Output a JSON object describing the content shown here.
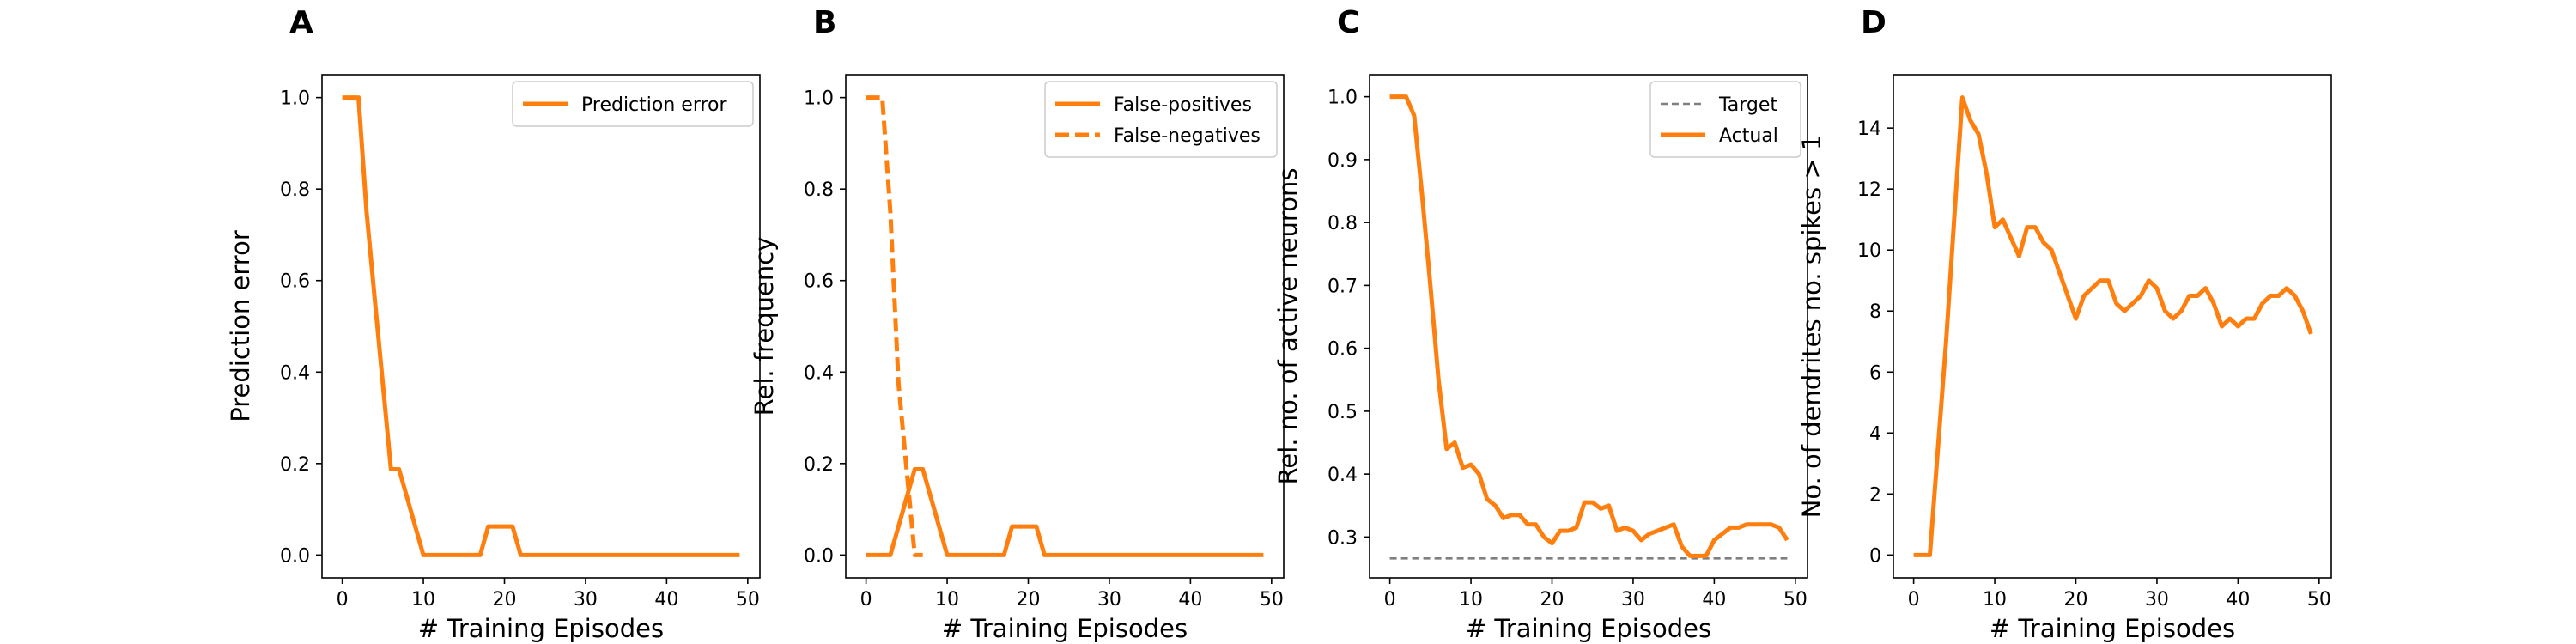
{
  "chart_data": [
    {
      "type": "line",
      "panel": "A",
      "xlabel": "# Training Episodes",
      "ylabel": "Prediction error",
      "xlim": [
        -2.5,
        51.5
      ],
      "ylim": [
        -0.05,
        1.05
      ],
      "xticks": [
        0,
        10,
        20,
        30,
        40,
        50
      ],
      "yticks": [
        0.0,
        0.2,
        0.4,
        0.6,
        0.8,
        1.0
      ],
      "ytick_decimals": 1,
      "legend": "top-right",
      "grid": false,
      "series": [
        {
          "name": "Prediction error",
          "style": "solid",
          "color": "#ff7f0e",
          "x": [
            0,
            1,
            2,
            3,
            4,
            5,
            6,
            7,
            8,
            9,
            10,
            11,
            12,
            13,
            14,
            15,
            16,
            17,
            18,
            19,
            20,
            21,
            22,
            23,
            24,
            25,
            26,
            27,
            28,
            29,
            30,
            31,
            32,
            33,
            34,
            35,
            36,
            37,
            38,
            39,
            40,
            41,
            42,
            43,
            44,
            45,
            46,
            47,
            48,
            49
          ],
          "y": [
            1.0,
            1.0,
            1.0,
            0.75,
            0.56,
            0.375,
            0.1875,
            0.1875,
            0.125,
            0.0625,
            0,
            0,
            0,
            0,
            0,
            0,
            0,
            0,
            0.0625,
            0.0625,
            0.0625,
            0.0625,
            0,
            0,
            0,
            0,
            0,
            0,
            0,
            0,
            0,
            0,
            0,
            0,
            0,
            0,
            0,
            0,
            0,
            0,
            0,
            0,
            0,
            0,
            0,
            0,
            0,
            0,
            0,
            0
          ]
        }
      ]
    },
    {
      "type": "line",
      "panel": "B",
      "xlabel": "# Training Episodes",
      "ylabel": "Rel. frequency",
      "xlim": [
        -2.5,
        51.5
      ],
      "ylim": [
        -0.05,
        1.05
      ],
      "xticks": [
        0,
        10,
        20,
        30,
        40,
        50
      ],
      "yticks": [
        0.0,
        0.2,
        0.4,
        0.6,
        0.8,
        1.0
      ],
      "ytick_decimals": 1,
      "legend": "top-right",
      "grid": false,
      "series": [
        {
          "name": "False-positives",
          "style": "solid",
          "color": "#ff7f0e",
          "x": [
            0,
            1,
            2,
            3,
            4,
            5,
            6,
            7,
            8,
            9,
            10,
            11,
            12,
            13,
            14,
            15,
            16,
            17,
            18,
            19,
            20,
            21,
            22,
            23,
            24,
            25,
            26,
            27,
            28,
            29,
            30,
            31,
            32,
            33,
            34,
            35,
            36,
            37,
            38,
            39,
            40,
            41,
            42,
            43,
            44,
            45,
            46,
            47,
            48,
            49
          ],
          "y": [
            0,
            0,
            0,
            0,
            0.0625,
            0.125,
            0.1875,
            0.1875,
            0.125,
            0.0625,
            0,
            0,
            0,
            0,
            0,
            0,
            0,
            0,
            0.0625,
            0.0625,
            0.0625,
            0.0625,
            0,
            0,
            0,
            0,
            0,
            0,
            0,
            0,
            0,
            0,
            0,
            0,
            0,
            0,
            0,
            0,
            0,
            0,
            0,
            0,
            0,
            0,
            0,
            0,
            0,
            0,
            0,
            0
          ]
        },
        {
          "name": "False-negatives",
          "style": "dashed",
          "color": "#ff7f0e",
          "x": [
            0,
            1,
            2,
            3,
            4,
            5,
            6,
            7
          ],
          "y": [
            1.0,
            1.0,
            1.0,
            0.75,
            0.375,
            0.1875,
            0,
            0
          ]
        }
      ]
    },
    {
      "type": "line",
      "panel": "C",
      "xlabel": "# Training Episodes",
      "ylabel": "Rel. no. of active neurons",
      "xlim": [
        -2.5,
        51.5
      ],
      "ylim": [
        0.235,
        1.035
      ],
      "xticks": [
        0,
        10,
        20,
        30,
        40,
        50
      ],
      "yticks": [
        0.3,
        0.4,
        0.5,
        0.6,
        0.7,
        0.8,
        0.9,
        1.0
      ],
      "ytick_decimals": 1,
      "legend": "top-right",
      "grid": false,
      "series": [
        {
          "name": "Target",
          "style": "dashed-thin",
          "color": "#7f7f7f",
          "x": [
            0,
            49
          ],
          "y": [
            0.266,
            0.266
          ]
        },
        {
          "name": "Actual",
          "style": "solid",
          "color": "#ff7f0e",
          "x": [
            0,
            1,
            2,
            3,
            4,
            5,
            6,
            7,
            8,
            9,
            10,
            11,
            12,
            13,
            14,
            15,
            16,
            17,
            18,
            19,
            20,
            21,
            22,
            23,
            24,
            25,
            26,
            27,
            28,
            29,
            30,
            31,
            32,
            33,
            34,
            35,
            36,
            37,
            38,
            39,
            40,
            41,
            42,
            43,
            44,
            45,
            46,
            47,
            48,
            49
          ],
          "y": [
            1.0,
            1.0,
            1.0,
            0.97,
            0.84,
            0.7,
            0.55,
            0.44,
            0.45,
            0.41,
            0.415,
            0.4,
            0.36,
            0.35,
            0.33,
            0.335,
            0.335,
            0.32,
            0.32,
            0.3,
            0.29,
            0.31,
            0.31,
            0.315,
            0.355,
            0.355,
            0.345,
            0.35,
            0.31,
            0.315,
            0.31,
            0.295,
            0.305,
            0.31,
            0.315,
            0.32,
            0.285,
            0.27,
            0.27,
            0.27,
            0.295,
            0.305,
            0.315,
            0.315,
            0.32,
            0.32,
            0.32,
            0.32,
            0.315,
            0.295
          ]
        }
      ]
    },
    {
      "type": "line",
      "panel": "D",
      "xlabel": "# Training Episodes",
      "ylabel": "No. of dendrites no. spikes > 1",
      "xlim": [
        -2.5,
        51.5
      ],
      "ylim": [
        -0.75,
        15.75
      ],
      "xticks": [
        0,
        10,
        20,
        30,
        40,
        50
      ],
      "yticks": [
        0,
        2,
        4,
        6,
        8,
        10,
        12,
        14
      ],
      "ytick_decimals": 0,
      "legend": "none",
      "grid": false,
      "series": [
        {
          "name": "",
          "style": "solid",
          "color": "#ff7f0e",
          "x": [
            0,
            1,
            2,
            3,
            4,
            5,
            6,
            7,
            8,
            9,
            10,
            11,
            12,
            13,
            14,
            15,
            16,
            17,
            18,
            19,
            20,
            21,
            22,
            23,
            24,
            25,
            26,
            27,
            28,
            29,
            30,
            31,
            32,
            33,
            34,
            35,
            36,
            37,
            38,
            39,
            40,
            41,
            42,
            43,
            44,
            45,
            46,
            47,
            48,
            49
          ],
          "y": [
            0,
            0,
            0,
            3.5,
            7,
            11,
            15,
            14.25,
            13.8,
            12.5,
            10.75,
            11,
            10.4,
            9.8,
            10.75,
            10.75,
            10.25,
            10,
            9.25,
            8.5,
            7.75,
            8.5,
            8.75,
            9,
            9,
            8.25,
            8,
            8.25,
            8.5,
            9,
            8.75,
            8,
            7.75,
            8,
            8.5,
            8.5,
            8.75,
            8.25,
            7.5,
            7.75,
            7.5,
            7.75,
            7.75,
            8.25,
            8.5,
            8.5,
            8.75,
            8.5,
            8,
            7.25
          ]
        }
      ]
    }
  ]
}
